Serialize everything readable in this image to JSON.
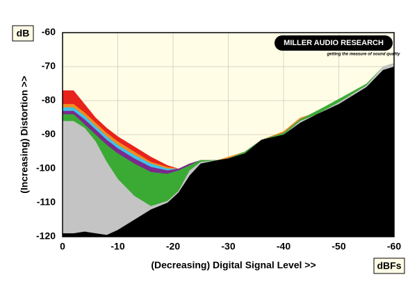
{
  "chart_data": {
    "type": "area",
    "y_unit": "dB",
    "x_unit": "dBFs",
    "ylabel": "(Increasing) Distortion >>",
    "xlabel": "(Decreasing) Digital Signal Level >>",
    "annotations": [
      "MILLER AUDIO RESEARCH",
      "getting the measure of sound quality"
    ],
    "x": [
      0,
      -2,
      -4,
      -6,
      -8,
      -10,
      -13,
      -16,
      -19,
      -21,
      -23,
      -25,
      -28,
      -30,
      -33,
      -36,
      -40,
      -43,
      -46,
      -50,
      -55,
      -58,
      -60
    ],
    "xlim": [
      0,
      -60
    ],
    "xticks": [
      0,
      -10,
      -20,
      -30,
      -40,
      -50,
      -60
    ],
    "ylim": [
      -120,
      -60
    ],
    "yticks": [
      -120,
      -110,
      -100,
      -90,
      -80,
      -70,
      -60
    ],
    "grid": true,
    "series": [
      {
        "color": "#e8231c",
        "values": [
          -77,
          -77,
          -81,
          -85,
          -88,
          -90.5,
          -93.5,
          -96.5,
          -99,
          -100,
          -99,
          -97.5,
          -97.5,
          -97,
          -95,
          -91.5,
          -89.5,
          -85.5,
          -83.5,
          -80,
          -75.5,
          -70,
          -69
        ]
      },
      {
        "color": "#f08c1e",
        "values": [
          -81,
          -81,
          -83.5,
          -86.5,
          -89.5,
          -92,
          -95,
          -98,
          -99.5,
          -100,
          -98.5,
          -97.5,
          -97.5,
          -96.5,
          -95,
          -91.5,
          -89,
          -85,
          -83.5,
          -80,
          -75.5,
          -70,
          -69
        ]
      },
      {
        "color": "#3fc3ea",
        "values": [
          -82,
          -82,
          -84.5,
          -87.5,
          -90.5,
          -93,
          -96,
          -98.5,
          -100,
          -100,
          -98.5,
          -97.5,
          -97.5,
          -97,
          -95,
          -91.5,
          -89.5,
          -85.5,
          -83.5,
          -80,
          -75.5,
          -70,
          -69
        ]
      },
      {
        "color": "#7b2a8c",
        "values": [
          -83,
          -83,
          -85.5,
          -88.5,
          -91.5,
          -94,
          -97,
          -99.5,
          -100.5,
          -100,
          -98.5,
          -97.5,
          -97.5,
          -97,
          -95,
          -91.5,
          -89.5,
          -85.5,
          -83,
          -80,
          -75.5,
          -70,
          -69
        ]
      },
      {
        "color": "#3aaa35",
        "values": [
          -84,
          -84,
          -87,
          -90,
          -93,
          -95.5,
          -98.5,
          -101,
          -101.5,
          -100.5,
          -99,
          -97.5,
          -97.5,
          -97,
          -95,
          -91.5,
          -89.5,
          -85.5,
          -83,
          -79.5,
          -75,
          -70,
          -69
        ]
      },
      {
        "color": "#c4c4c4",
        "values": [
          -86,
          -86,
          -88,
          -92,
          -98,
          -103,
          -108,
          -111,
          -109.5,
          -106.5,
          -100.5,
          -98,
          -97.5,
          -97,
          -95.5,
          -91.5,
          -90,
          -86,
          -84,
          -80.5,
          -75.5,
          -70,
          -69
        ]
      },
      {
        "color": "#000000",
        "values": [
          -119,
          -119,
          -118.5,
          -119,
          -119.5,
          -118,
          -115,
          -112,
          -110,
          -107,
          -102,
          -98.5,
          -97.5,
          -97,
          -95.5,
          -91.5,
          -90,
          -86.5,
          -84,
          -81,
          -76,
          -71,
          -70
        ]
      }
    ]
  }
}
